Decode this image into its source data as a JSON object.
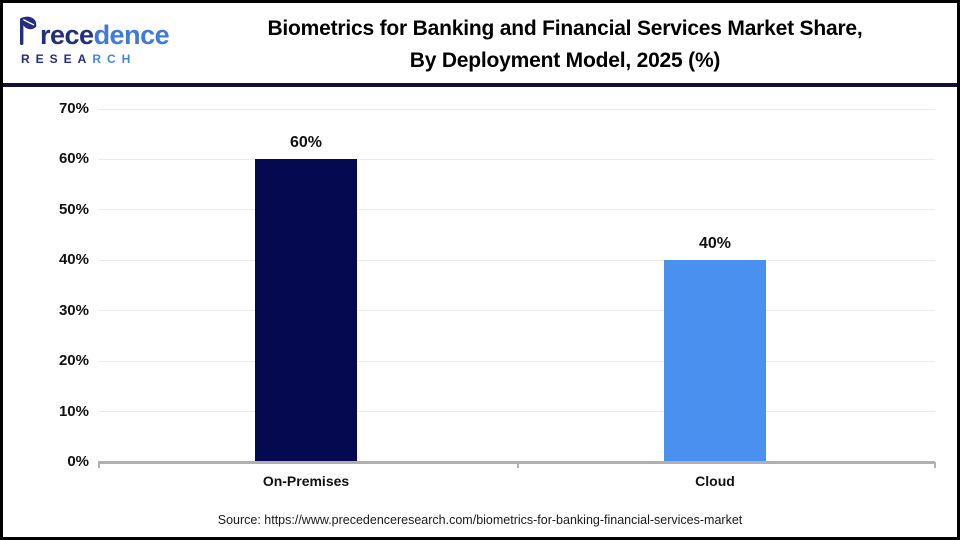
{
  "logo": {
    "brand": "Precedence",
    "brand_seg1": "rece",
    "brand_seg2": "dence",
    "research_seg1": "RESEA",
    "research_seg2": "RCH"
  },
  "header": {
    "title_line1": "Biometrics for Banking and Financial Services Market Share,",
    "title_line2": "By Deployment Model, 2025 (%)"
  },
  "chart_data": {
    "type": "bar",
    "title": "Biometrics for Banking and Financial Services Market Share, By Deployment Model, 2025 (%)",
    "categories": [
      "On-Premises",
      "Cloud"
    ],
    "values": [
      60,
      40
    ],
    "value_labels": [
      "60%",
      "40%"
    ],
    "bar_colors": [
      "#050a50",
      "#4a90ee"
    ],
    "y_ticks": [
      "70%",
      "60%",
      "50%",
      "40%",
      "30%",
      "20%",
      "10%",
      "0%"
    ],
    "y_tick_values": [
      70,
      60,
      50,
      40,
      30,
      20,
      10,
      0
    ],
    "ylim": [
      0,
      70
    ],
    "xlabel": "",
    "ylabel": "",
    "grid": "horizontal",
    "legend": "none"
  },
  "colors": {
    "divider_navy": "#10103a",
    "gridline": "#ececec",
    "axis": "#b0b0b0",
    "title_text": "#000000"
  },
  "footer": {
    "source": "Source: https://www.precedenceresearch.com/biometrics-for-banking-financial-services-market"
  }
}
